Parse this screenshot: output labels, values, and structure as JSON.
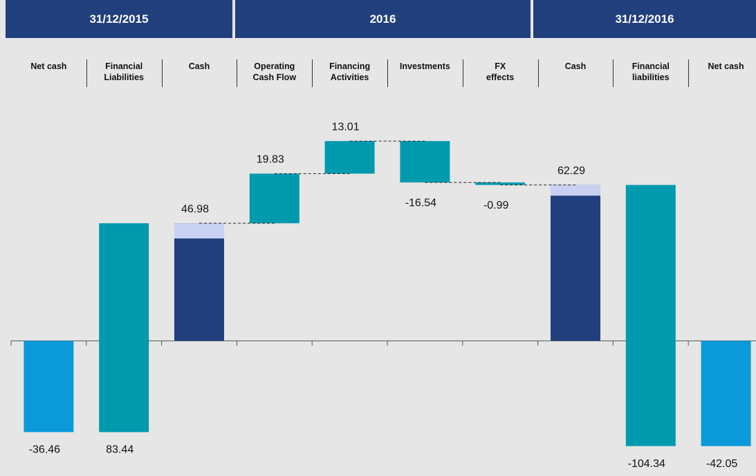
{
  "chart_data": {
    "type": "waterfall",
    "periods": [
      "31/12/2015",
      "2016",
      "31/12/2016"
    ],
    "categories": [
      "Net cash",
      "Financial\nLiabilities",
      "Cash",
      "Operating\nCash Flow",
      "Financing\nActivities",
      "Investments",
      "FX\neffects",
      "Cash",
      "Financial\nliabilities",
      "Net cash"
    ],
    "values": [
      -36.46,
      83.44,
      46.98,
      19.83,
      13.01,
      -16.54,
      -0.99,
      62.29,
      -104.34,
      -42.05
    ],
    "kinds": [
      "total",
      "delta",
      "total",
      "delta",
      "delta",
      "delta",
      "delta",
      "total",
      "delta",
      "total"
    ],
    "colors": [
      "#0a9ad9",
      "#009aaf",
      "#213f7d",
      "#009aaf",
      "#009aaf",
      "#009aaf",
      "#009aaf",
      "#213f7d",
      "#009aaf",
      "#0a9ad9"
    ],
    "inner_values": [
      null,
      null,
      40.9,
      null,
      null,
      null,
      null,
      58.0,
      null,
      null
    ],
    "inner_color": "#c8d1f2",
    "ylim": [
      -54,
      121
    ]
  }
}
